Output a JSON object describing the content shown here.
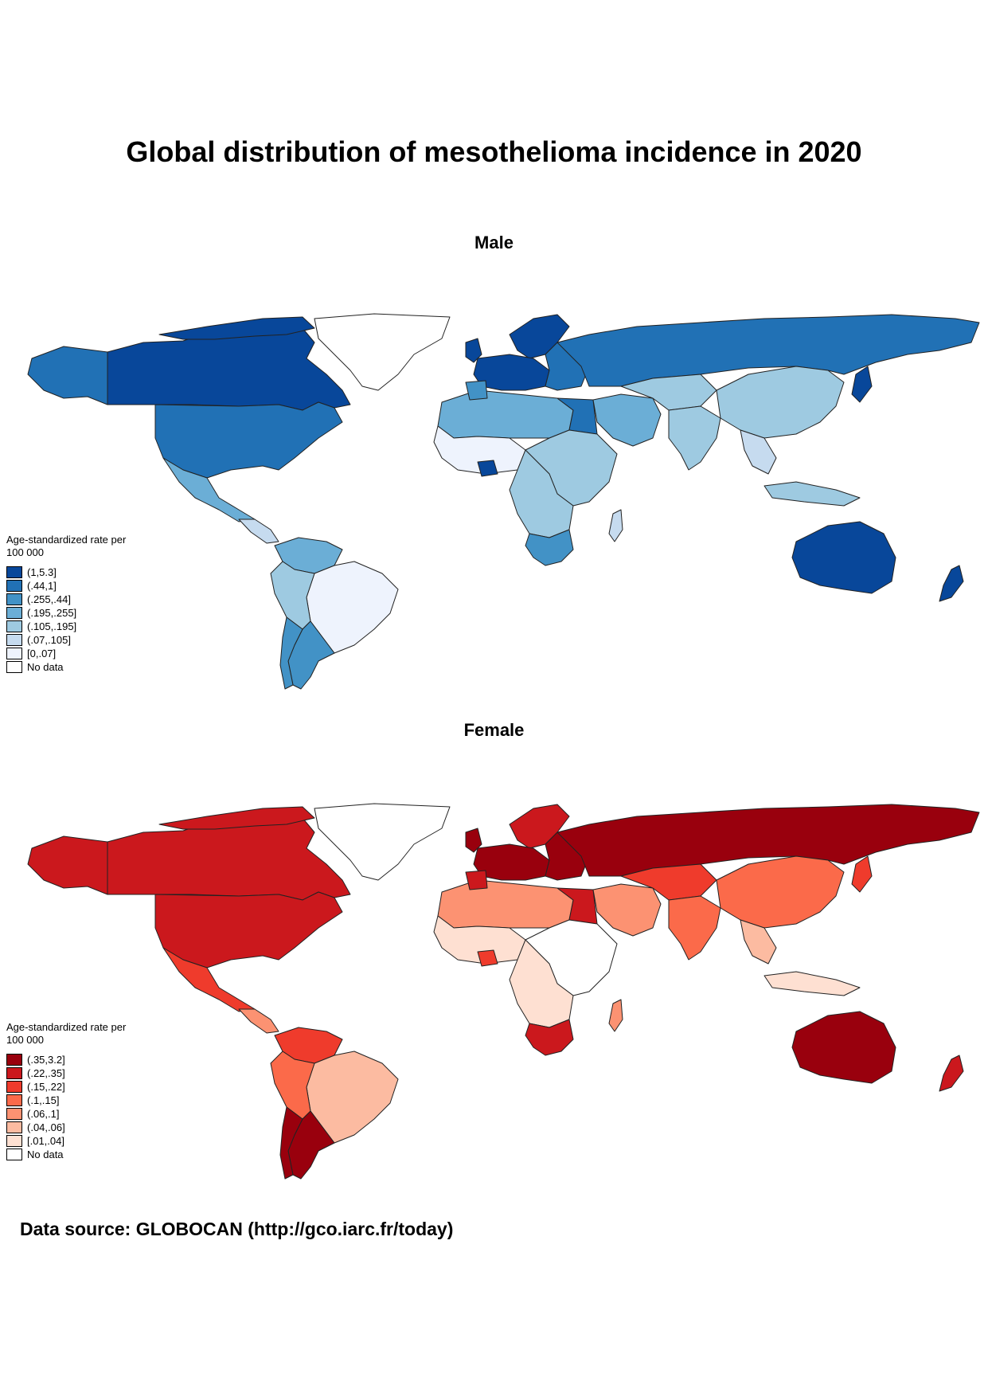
{
  "title": "Global distribution of mesothelioma incidence in 2020",
  "maps": [
    {
      "subtitle": "Male",
      "legend_title": "Age-standardized rate per 100 000",
      "legend": [
        {
          "label": "(1,5.3]",
          "color": "#08479a"
        },
        {
          "label": "(.44,1]",
          "color": "#2171b5"
        },
        {
          "label": "(.255,.44]",
          "color": "#4292c6"
        },
        {
          "label": "(.195,.255]",
          "color": "#6baed6"
        },
        {
          "label": "(.105,.195]",
          "color": "#9ecae1"
        },
        {
          "label": "(.07,.105]",
          "color": "#c6dbef"
        },
        {
          "label": "[0,.07]",
          "color": "#eef3fd"
        },
        {
          "label": "No data",
          "color": "#ffffff"
        }
      ]
    },
    {
      "subtitle": "Female",
      "legend_title": "Age-standardized rate per 100 000",
      "legend": [
        {
          "label": "(.35,3.2]",
          "color": "#99000d"
        },
        {
          "label": "(.22,.35]",
          "color": "#cb181d"
        },
        {
          "label": "(.15,.22]",
          "color": "#ef3b2c"
        },
        {
          "label": "(.1,.15]",
          "color": "#fb6a4a"
        },
        {
          "label": "(.06,.1]",
          "color": "#fc9272"
        },
        {
          "label": "(.04,.06]",
          "color": "#fcbba1"
        },
        {
          "label": "[.01,.04]",
          "color": "#fee0d2"
        },
        {
          "label": "No data",
          "color": "#ffffff"
        }
      ]
    }
  ],
  "source": "Data source: GLOBOCAN (http://gco.iarc.fr/today)"
}
